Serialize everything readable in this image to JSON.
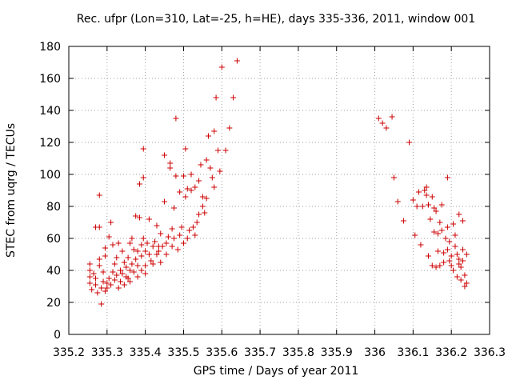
{
  "chart_data": {
    "type": "scatter",
    "title": "Rec. ufpr (Lon=310, Lat=-25, h=HE), days 335-336, 2011, window 001",
    "xlabel": "GPS time / Days of year 2011",
    "ylabel": "STEC from uqrg / TECUs",
    "xlim": [
      335.2,
      336.3
    ],
    "ylim": [
      0,
      180
    ],
    "xticks": [
      335.2,
      335.3,
      335.4,
      335.5,
      335.6,
      335.7,
      335.8,
      335.9,
      336,
      336.1,
      336.2,
      336.3
    ],
    "xtick_labels": [
      "335.2",
      "335.3",
      "335.4",
      "335.5",
      "335.6",
      "335.7",
      "335.8",
      "335.9",
      "336",
      "336.1",
      "336.2",
      "336.3"
    ],
    "yticks": [
      0,
      20,
      40,
      60,
      80,
      100,
      120,
      140,
      160,
      180
    ],
    "ytick_labels": [
      "0",
      "20",
      "40",
      "60",
      "80",
      "100",
      "120",
      "140",
      "160",
      "180"
    ],
    "grid": true,
    "marker": "+",
    "colors": {
      "points": "#cc0000",
      "grid": "#a0a0a0",
      "frame": "#000000"
    },
    "series": [
      {
        "points": [
          [
            335.255,
            44
          ],
          [
            335.255,
            40
          ],
          [
            335.255,
            36
          ],
          [
            335.255,
            32
          ],
          [
            335.26,
            28
          ],
          [
            335.265,
            38
          ],
          [
            335.27,
            35
          ],
          [
            335.27,
            31
          ],
          [
            335.27,
            67
          ],
          [
            335.275,
            26
          ],
          [
            335.28,
            43
          ],
          [
            335.28,
            67
          ],
          [
            335.28,
            87
          ],
          [
            335.28,
            47
          ],
          [
            335.285,
            29
          ],
          [
            335.285,
            19
          ],
          [
            335.29,
            33
          ],
          [
            335.29,
            39
          ],
          [
            335.295,
            49
          ],
          [
            335.295,
            27
          ],
          [
            335.295,
            54
          ],
          [
            335.3,
            32
          ],
          [
            335.3,
            29
          ],
          [
            335.305,
            61
          ],
          [
            335.305,
            35
          ],
          [
            335.31,
            31
          ],
          [
            335.31,
            70
          ],
          [
            335.315,
            56
          ],
          [
            335.315,
            39
          ],
          [
            335.32,
            34
          ],
          [
            335.32,
            44
          ],
          [
            335.325,
            48
          ],
          [
            335.325,
            37
          ],
          [
            335.33,
            29
          ],
          [
            335.33,
            57
          ],
          [
            335.335,
            33
          ],
          [
            335.335,
            40
          ],
          [
            335.34,
            52
          ],
          [
            335.34,
            38
          ],
          [
            335.345,
            45
          ],
          [
            335.345,
            31
          ],
          [
            335.35,
            42
          ],
          [
            335.35,
            36
          ],
          [
            335.355,
            48
          ],
          [
            335.355,
            35
          ],
          [
            335.36,
            57
          ],
          [
            335.36,
            40
          ],
          [
            335.36,
            33
          ],
          [
            335.365,
            60
          ],
          [
            335.365,
            44
          ],
          [
            335.37,
            53
          ],
          [
            335.37,
            39
          ],
          [
            335.375,
            74
          ],
          [
            335.375,
            47
          ],
          [
            335.38,
            36
          ],
          [
            335.38,
            52
          ],
          [
            335.38,
            43
          ],
          [
            335.385,
            73
          ],
          [
            335.385,
            94
          ],
          [
            335.39,
            56
          ],
          [
            335.39,
            40
          ],
          [
            335.39,
            49
          ],
          [
            335.395,
            98
          ],
          [
            335.395,
            60
          ],
          [
            335.395,
            116
          ],
          [
            335.4,
            43
          ],
          [
            335.4,
            52
          ],
          [
            335.4,
            38
          ],
          [
            335.405,
            57
          ],
          [
            335.41,
            50
          ],
          [
            335.41,
            72
          ],
          [
            335.415,
            46
          ],
          [
            335.42,
            55
          ],
          [
            335.42,
            44
          ],
          [
            335.425,
            58
          ],
          [
            335.43,
            68
          ],
          [
            335.43,
            50
          ],
          [
            335.435,
            55
          ],
          [
            335.435,
            52
          ],
          [
            335.44,
            63
          ],
          [
            335.44,
            45
          ],
          [
            335.445,
            55
          ],
          [
            335.45,
            83
          ],
          [
            335.45,
            112
          ],
          [
            335.455,
            57
          ],
          [
            335.455,
            50
          ],
          [
            335.46,
            61
          ],
          [
            335.465,
            107
          ],
          [
            335.465,
            104
          ],
          [
            335.47,
            66
          ],
          [
            335.47,
            55
          ],
          [
            335.475,
            79
          ],
          [
            335.475,
            60
          ],
          [
            335.48,
            135
          ],
          [
            335.48,
            99
          ],
          [
            335.485,
            53
          ],
          [
            335.49,
            89
          ],
          [
            335.49,
            62
          ],
          [
            335.495,
            67
          ],
          [
            335.5,
            57
          ],
          [
            335.5,
            99
          ],
          [
            335.505,
            116
          ],
          [
            335.505,
            86
          ],
          [
            335.51,
            91
          ],
          [
            335.51,
            60
          ],
          [
            335.515,
            65
          ],
          [
            335.52,
            100
          ],
          [
            335.52,
            90
          ],
          [
            335.525,
            67
          ],
          [
            335.53,
            92
          ],
          [
            335.53,
            62
          ],
          [
            335.535,
            70
          ],
          [
            335.54,
            75
          ],
          [
            335.54,
            96
          ],
          [
            335.545,
            106
          ],
          [
            335.55,
            86
          ],
          [
            335.55,
            80
          ],
          [
            335.555,
            76
          ],
          [
            335.56,
            109
          ],
          [
            335.56,
            85
          ],
          [
            335.565,
            124
          ],
          [
            335.57,
            104
          ],
          [
            335.575,
            98
          ],
          [
            335.58,
            127
          ],
          [
            335.58,
            92
          ],
          [
            335.585,
            148
          ],
          [
            335.59,
            115
          ],
          [
            335.595,
            102
          ],
          [
            335.6,
            167
          ],
          [
            335.61,
            115
          ],
          [
            335.62,
            129
          ],
          [
            335.63,
            148
          ],
          [
            335.64,
            171
          ],
          [
            336.01,
            135
          ],
          [
            336.02,
            132
          ],
          [
            336.03,
            129
          ],
          [
            336.045,
            136
          ],
          [
            336.05,
            98
          ],
          [
            336.06,
            83
          ],
          [
            336.075,
            71
          ],
          [
            336.09,
            120
          ],
          [
            336.1,
            84
          ],
          [
            336.105,
            62
          ],
          [
            336.11,
            80
          ],
          [
            336.115,
            89
          ],
          [
            336.12,
            56
          ],
          [
            336.125,
            80
          ],
          [
            336.13,
            90
          ],
          [
            336.135,
            92
          ],
          [
            336.135,
            87
          ],
          [
            336.14,
            49
          ],
          [
            336.14,
            81
          ],
          [
            336.145,
            72
          ],
          [
            336.15,
            86
          ],
          [
            336.15,
            43
          ],
          [
            336.155,
            79
          ],
          [
            336.155,
            64
          ],
          [
            336.16,
            77
          ],
          [
            336.16,
            42
          ],
          [
            336.165,
            63
          ],
          [
            336.165,
            52
          ],
          [
            336.17,
            70
          ],
          [
            336.17,
            43
          ],
          [
            336.175,
            81
          ],
          [
            336.175,
            65
          ],
          [
            336.18,
            51
          ],
          [
            336.18,
            45
          ],
          [
            336.185,
            60
          ],
          [
            336.19,
            98
          ],
          [
            336.19,
            67
          ],
          [
            336.19,
            53
          ],
          [
            336.195,
            58
          ],
          [
            336.195,
            46
          ],
          [
            336.2,
            49
          ],
          [
            336.2,
            43
          ],
          [
            336.205,
            69
          ],
          [
            336.205,
            40
          ],
          [
            336.21,
            62
          ],
          [
            336.21,
            55
          ],
          [
            336.215,
            50
          ],
          [
            336.215,
            36
          ],
          [
            336.22,
            75
          ],
          [
            336.22,
            47
          ],
          [
            336.22,
            44
          ],
          [
            336.225,
            34
          ],
          [
            336.225,
            42
          ],
          [
            336.23,
            71
          ],
          [
            336.23,
            53
          ],
          [
            336.23,
            46
          ],
          [
            336.235,
            37
          ],
          [
            336.235,
            30
          ],
          [
            336.24,
            50
          ],
          [
            336.24,
            32
          ]
        ]
      }
    ]
  }
}
